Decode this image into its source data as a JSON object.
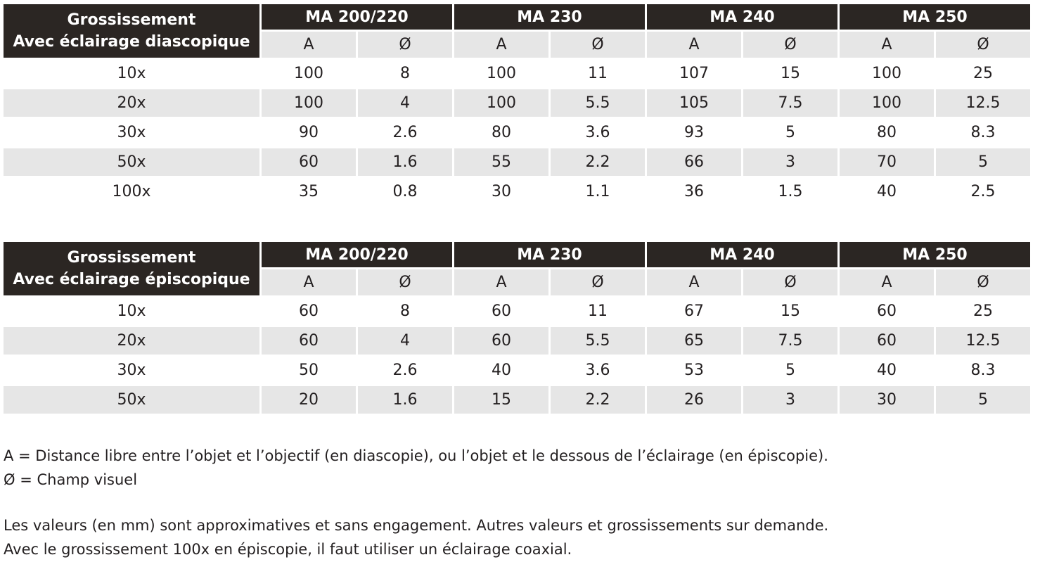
{
  "tables": [
    {
      "corner_line1": "Grossissement",
      "corner_line2": "Avec éclairage diascopique",
      "models": [
        "MA 200/220",
        "MA 230",
        "MA 240",
        "MA 250"
      ],
      "sub_a": "A",
      "sub_d": "Ø",
      "rows": [
        {
          "label": "10x",
          "values": [
            "100",
            "8",
            "100",
            "11",
            "107",
            "15",
            "100",
            "25"
          ]
        },
        {
          "label": "20x",
          "values": [
            "100",
            "4",
            "100",
            "5.5",
            "105",
            "7.5",
            "100",
            "12.5"
          ]
        },
        {
          "label": "30x",
          "values": [
            "90",
            "2.6",
            "80",
            "3.6",
            "93",
            "5",
            "80",
            "8.3"
          ]
        },
        {
          "label": "50x",
          "values": [
            "60",
            "1.6",
            "55",
            "2.2",
            "66",
            "3",
            "70",
            "5"
          ]
        },
        {
          "label": "100x",
          "values": [
            "35",
            "0.8",
            "30",
            "1.1",
            "36",
            "1.5",
            "40",
            "2.5"
          ]
        }
      ]
    },
    {
      "corner_line1": "Grossissement",
      "corner_line2": "Avec éclairage épiscopique",
      "models": [
        "MA 200/220",
        "MA 230",
        "MA 240",
        "MA 250"
      ],
      "sub_a": "A",
      "sub_d": "Ø",
      "rows": [
        {
          "label": "10x",
          "values": [
            "60",
            "8",
            "60",
            "11",
            "67",
            "15",
            "60",
            "25"
          ]
        },
        {
          "label": "20x",
          "values": [
            "60",
            "4",
            "60",
            "5.5",
            "65",
            "7.5",
            "60",
            "12.5"
          ]
        },
        {
          "label": "30x",
          "values": [
            "50",
            "2.6",
            "40",
            "3.6",
            "53",
            "5",
            "40",
            "8.3"
          ]
        },
        {
          "label": "50x",
          "values": [
            "20",
            "1.6",
            "15",
            "2.2",
            "26",
            "3",
            "30",
            "5"
          ]
        }
      ]
    }
  ],
  "notes": {
    "a_def": "A = Distance libre entre l’objet et l’objectif (en diascopie), ou l’objet et le dessous de l’éclairage (en épiscopie).",
    "d_def": "Ø = Champ visuel",
    "approx": "Les valeurs (en mm) sont approximatives et sans engagement. Autres valeurs et grossissements sur demande.",
    "coaxial": "Avec le grossissement 100x en épiscopie, il faut utiliser un éclairage coaxial."
  }
}
